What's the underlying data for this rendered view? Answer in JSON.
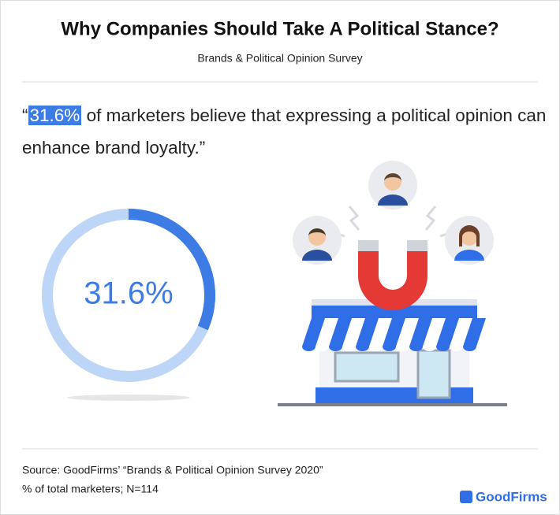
{
  "chart_data": {
    "type": "donut",
    "title": "Why Companies Should Take A Political Stance?",
    "subtitle": "Brands & Political Opinion Survey",
    "quote": {
      "open": "“",
      "highlight": "31.6%",
      "text": "of marketers believe that expressing a political opinion can enhance brand loyalty.”"
    },
    "values": [
      31.6
    ],
    "value_labels": [
      "31.6%"
    ],
    "color": "#3c7ce4",
    "track_color": "#bdd5f7",
    "source": [
      "Source: GoodFirms’ “Brands & Political Opinion Survey 2020”",
      "% of total marketers; N=114"
    ],
    "brand": "GoodFirms"
  }
}
